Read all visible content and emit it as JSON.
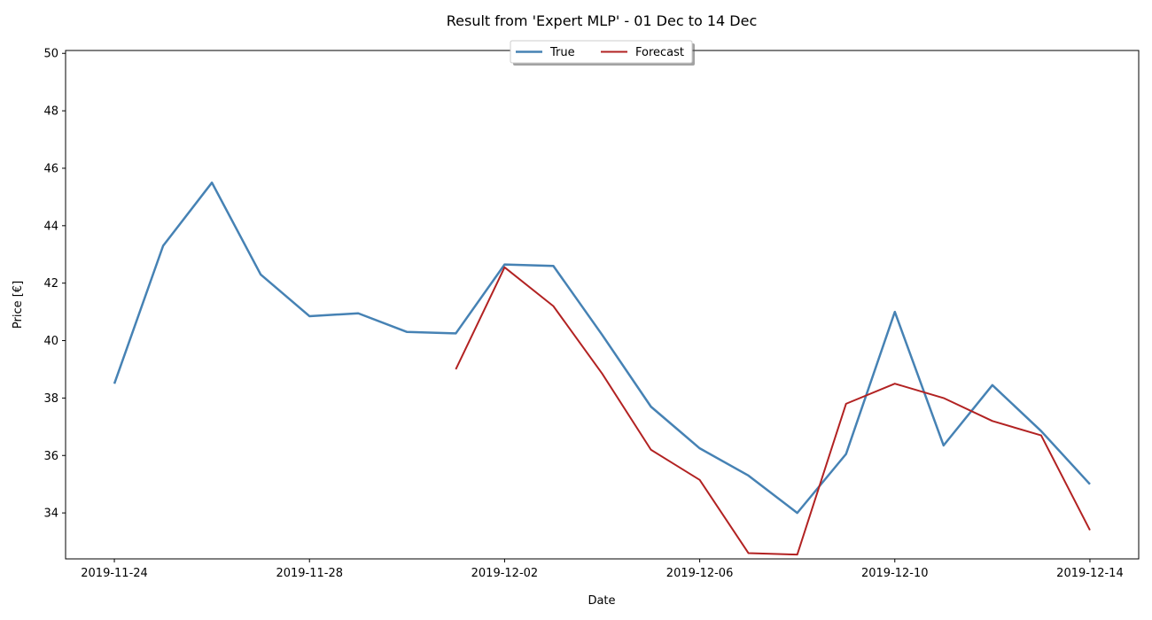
{
  "chart_data": {
    "type": "line",
    "title": "Result from 'Expert MLP' - 01 Dec to 14 Dec",
    "xlabel": "Date",
    "ylabel": "Price [€]",
    "x_tick_labels": [
      "2019-11-24",
      "2019-11-28",
      "2019-12-02",
      "2019-12-06",
      "2019-12-10",
      "2019-12-14"
    ],
    "y_tick_labels": [
      "34",
      "36",
      "38",
      "40",
      "42",
      "44",
      "46",
      "48",
      "50"
    ],
    "x_range": [
      "2019-11-23",
      "2019-12-15"
    ],
    "ylim": [
      32.4,
      50.1
    ],
    "grid": false,
    "legend_position": "top-center",
    "series": [
      {
        "name": "True",
        "color": "#4682b4",
        "points": [
          {
            "x": "2019-11-24",
            "y": 38.5
          },
          {
            "x": "2019-11-25",
            "y": 43.3
          },
          {
            "x": "2019-11-26",
            "y": 45.5
          },
          {
            "x": "2019-11-27",
            "y": 42.3
          },
          {
            "x": "2019-11-28",
            "y": 40.85
          },
          {
            "x": "2019-11-29",
            "y": 40.95
          },
          {
            "x": "2019-11-30",
            "y": 40.3
          },
          {
            "x": "2019-12-01",
            "y": 40.25
          },
          {
            "x": "2019-12-02",
            "y": 42.65
          },
          {
            "x": "2019-12-03",
            "y": 42.6
          },
          {
            "x": "2019-12-04",
            "y": 40.2
          },
          {
            "x": "2019-12-05",
            "y": 37.7
          },
          {
            "x": "2019-12-06",
            "y": 36.25
          },
          {
            "x": "2019-12-07",
            "y": 35.3
          },
          {
            "x": "2019-12-08",
            "y": 34.0
          },
          {
            "x": "2019-12-09",
            "y": 36.05
          },
          {
            "x": "2019-12-10",
            "y": 41.0
          },
          {
            "x": "2019-12-11",
            "y": 36.35
          },
          {
            "x": "2019-12-12",
            "y": 38.45
          },
          {
            "x": "2019-12-13",
            "y": 36.85
          },
          {
            "x": "2019-12-14",
            "y": 35.0
          }
        ]
      },
      {
        "name": "Forecast",
        "color": "#b22222",
        "points": [
          {
            "x": "2019-12-01",
            "y": 39.0
          },
          {
            "x": "2019-12-02",
            "y": 42.55
          },
          {
            "x": "2019-12-03",
            "y": 41.2
          },
          {
            "x": "2019-12-04",
            "y": 38.85
          },
          {
            "x": "2019-12-05",
            "y": 36.2
          },
          {
            "x": "2019-12-06",
            "y": 35.15
          },
          {
            "x": "2019-12-07",
            "y": 32.6
          },
          {
            "x": "2019-12-08",
            "y": 32.55
          },
          {
            "x": "2019-12-09",
            "y": 37.8
          },
          {
            "x": "2019-12-10",
            "y": 38.5
          },
          {
            "x": "2019-12-11",
            "y": 38.0
          },
          {
            "x": "2019-12-12",
            "y": 37.2
          },
          {
            "x": "2019-12-13",
            "y": 36.7
          },
          {
            "x": "2019-12-14",
            "y": 33.4
          }
        ]
      }
    ]
  }
}
